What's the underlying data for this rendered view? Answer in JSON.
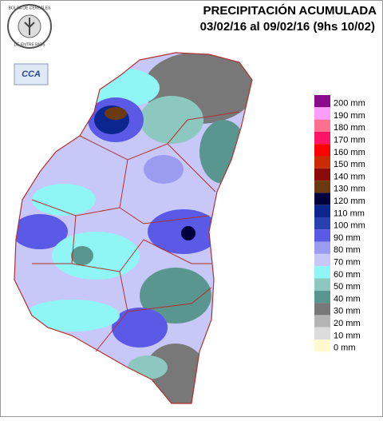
{
  "header": {
    "title": "PRECIPITACIÓN ACUMULADA",
    "subtitle": "03/02/16 al 09/02/16 (9hs 10/02)"
  },
  "logo": {
    "top": "BOLSA DE CEREALES",
    "bottom": "DE ENTRE RIOS",
    "badge": "CCA"
  },
  "legend": {
    "items": [
      {
        "label": "200 mm",
        "color": "#8b0a8b"
      },
      {
        "label": "190 mm",
        "color": "#ff9cff"
      },
      {
        "label": "180 mm",
        "color": "#ff6f8f"
      },
      {
        "label": "170 mm",
        "color": "#ff1466"
      },
      {
        "label": "160 mm",
        "color": "#ff0000"
      },
      {
        "label": "150 mm",
        "color": "#cc2a00"
      },
      {
        "label": "140 mm",
        "color": "#8b0a0a"
      },
      {
        "label": "130 mm",
        "color": "#6b3a10"
      },
      {
        "label": "120 mm",
        "color": "#00003c"
      },
      {
        "label": "110 mm",
        "color": "#0c2690"
      },
      {
        "label": "100 mm",
        "color": "#2840b0"
      },
      {
        "label": "90 mm",
        "color": "#5a5ae6"
      },
      {
        "label": "80 mm",
        "color": "#9b9bf0"
      },
      {
        "label": "70 mm",
        "color": "#c8c8f8"
      },
      {
        "label": "60 mm",
        "color": "#8ff5f5"
      },
      {
        "label": "50 mm",
        "color": "#8cc8c0"
      },
      {
        "label": "40 mm",
        "color": "#5a9690"
      },
      {
        "label": "30 mm",
        "color": "#787878"
      },
      {
        "label": "20 mm",
        "color": "#b4b4b4"
      },
      {
        "label": "10 mm",
        "color": "#dcdcdc"
      },
      {
        "label": "0 mm",
        "color": "#fffacd"
      }
    ]
  }
}
